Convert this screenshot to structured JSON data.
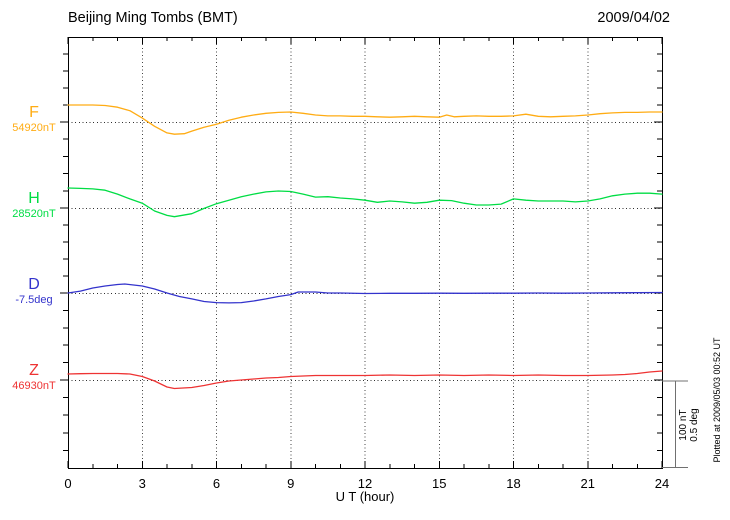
{
  "header": {
    "title": "Beijing Ming Tombs (BMT)",
    "date": "2009/04/02"
  },
  "x_axis": {
    "label": "U T (hour)",
    "ticks": [
      "0",
      "3",
      "6",
      "9",
      "12",
      "15",
      "18",
      "21",
      "24"
    ],
    "tick_hours": [
      0,
      3,
      6,
      9,
      12,
      15,
      18,
      21,
      24
    ],
    "minor_step_hours": 1,
    "range": [
      0,
      24
    ]
  },
  "channels": [
    {
      "id": "F",
      "label": "F",
      "baseline_label": "54920nT",
      "unit": "nT",
      "color": "#FFAC14"
    },
    {
      "id": "H",
      "label": "H",
      "baseline_label": "28520nT",
      "unit": "nT",
      "color": "#00DD44"
    },
    {
      "id": "D",
      "label": "D",
      "baseline_label": "-7.5deg",
      "unit": "deg",
      "color": "#3333CC"
    },
    {
      "id": "Z",
      "label": "Z",
      "baseline_label": "46930nT",
      "unit": "nT",
      "color": "#EE3333"
    }
  ],
  "scale_bar": {
    "labels": [
      "100 nT",
      "0.5 deg"
    ],
    "represents": {
      "nT": 100,
      "deg": 0.5
    }
  },
  "footer_note": "Plotted at 2009/05/03 00:52 UT",
  "chart_data": {
    "type": "line",
    "title": "Beijing Ming Tombs (BMT)",
    "date": "2009/04/02",
    "xlabel": "U T (hour)",
    "x_range": [
      0,
      24
    ],
    "x_tick_step": 3,
    "grid": "dotted vertical lines every 3 hours; dotted horizontal baseline per channel",
    "legend_position": "left margin channel labels",
    "note": "y values are offsets from each channel baseline; scale bar = 100 nT / 0.5 deg",
    "series": [
      {
        "name": "F",
        "baseline": "54920nT",
        "unit": "nT",
        "color": "#FFAC14",
        "x": [
          0,
          0.5,
          1,
          1.5,
          2,
          2.5,
          3,
          3.5,
          4,
          4.3,
          4.7,
          5,
          5.5,
          6,
          6.5,
          7,
          7.5,
          8,
          8.5,
          9,
          9.5,
          10,
          10.5,
          11,
          11.5,
          12,
          12.5,
          13,
          13.5,
          14,
          14.5,
          15,
          15.3,
          15.6,
          16,
          16.5,
          17,
          17.5,
          18,
          18.5,
          19,
          19.5,
          20,
          20.5,
          21,
          21.5,
          22,
          22.5,
          23,
          23.5,
          24
        ],
        "y": [
          19.5,
          19.5,
          19.5,
          19,
          17,
          13,
          4.5,
          -5,
          -12.5,
          -14,
          -13.5,
          -10.5,
          -6,
          -2.5,
          2,
          5.5,
          8,
          10,
          11,
          11.5,
          10,
          8,
          7,
          7,
          6.5,
          6.5,
          6,
          5.5,
          6,
          6.5,
          6,
          5.5,
          8,
          6,
          6.5,
          7,
          6.5,
          6.5,
          7,
          9,
          6.5,
          6,
          6.5,
          7,
          8,
          9.5,
          10.5,
          11,
          11,
          11.5,
          11.5
        ]
      },
      {
        "name": "H",
        "baseline": "28520nT",
        "unit": "nT",
        "color": "#00DD44",
        "x": [
          0,
          0.5,
          1,
          1.5,
          2,
          2.5,
          3,
          3.5,
          4,
          4.3,
          5,
          5.5,
          6,
          6.5,
          7,
          7.5,
          8,
          8.5,
          9,
          9.5,
          10,
          10.5,
          11,
          11.5,
          12,
          12.5,
          13,
          13.5,
          14,
          14.5,
          15,
          15.5,
          16,
          16.5,
          17,
          17.5,
          18,
          18.5,
          19,
          19.5,
          20,
          20.5,
          21,
          21.5,
          22,
          22.5,
          23,
          23.5,
          24
        ],
        "y": [
          23,
          22.5,
          22,
          20.5,
          16,
          10.5,
          5.5,
          -3.5,
          -8.5,
          -10,
          -6.5,
          -0.5,
          5,
          9,
          13,
          16,
          18.5,
          19.5,
          19,
          16,
          12.5,
          13,
          11.5,
          10.5,
          9,
          6.5,
          8,
          7,
          5.5,
          6.5,
          9,
          8.5,
          5.5,
          3.5,
          3.5,
          4.5,
          10.5,
          9,
          8,
          8,
          8,
          7,
          8,
          10.5,
          14,
          16,
          17,
          17,
          16
        ]
      },
      {
        "name": "D",
        "baseline": "-7.5deg",
        "unit": "deg",
        "color": "#3333CC",
        "x": [
          0,
          0.5,
          1,
          1.5,
          2,
          2.3,
          3,
          3.5,
          4,
          4.5,
          5,
          5.5,
          6,
          6.5,
          7,
          7.5,
          8,
          8.5,
          9,
          9.3,
          10,
          10.5,
          11,
          12,
          13,
          14,
          15,
          16,
          17,
          18,
          19,
          20,
          21,
          22,
          23,
          24
        ],
        "y": [
          0,
          0.011,
          0.029,
          0.04,
          0.049,
          0.052,
          0.04,
          0.023,
          0,
          -0.02,
          -0.034,
          -0.049,
          -0.055,
          -0.057,
          -0.055,
          -0.046,
          -0.034,
          -0.02,
          -0.009,
          0.006,
          0.006,
          0,
          0,
          -0.003,
          -0.002,
          -0.002,
          -0.001,
          -0.002,
          -0.001,
          -0.001,
          0,
          -0.001,
          0,
          0.001,
          0.002,
          0.003
        ]
      },
      {
        "name": "Z",
        "baseline": "46930nT",
        "unit": "nT",
        "color": "#EE3333",
        "x": [
          0,
          0.5,
          1,
          1.5,
          2,
          2.5,
          3,
          3.5,
          4,
          4.3,
          5,
          5.5,
          6,
          6.5,
          7,
          7.5,
          8,
          8.5,
          9,
          9.5,
          10,
          11,
          12,
          13,
          14,
          15,
          16,
          17,
          18,
          19,
          20,
          21,
          22,
          22.5,
          23,
          23.5,
          24
        ],
        "y": [
          6.9,
          7.2,
          7.5,
          7.5,
          7.5,
          6.9,
          4,
          -1.1,
          -8,
          -9.8,
          -8.6,
          -6.3,
          -3.4,
          -1.1,
          0,
          1.1,
          2.3,
          2.9,
          4,
          4.6,
          5.2,
          5.2,
          5.2,
          5.7,
          5.2,
          5.7,
          5.2,
          5.7,
          5.2,
          5.7,
          5.2,
          5.2,
          5.7,
          6.3,
          7.5,
          9.2,
          10.3
        ]
      }
    ]
  }
}
